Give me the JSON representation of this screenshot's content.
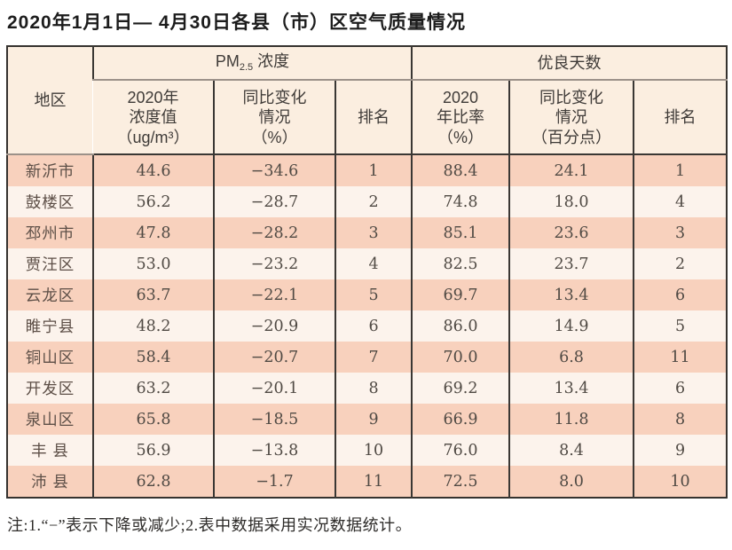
{
  "page": {
    "title": "2020年1月1日— 4月30日各县（市）区空气质量情况",
    "note": "注:1.“−”表示下降或减少;2.表中数据采用实况数据统计。"
  },
  "colors": {
    "row_odd_bg": "#f8d1bd",
    "row_even_bg": "#fcf3ec",
    "header_bg": "#fbeee0",
    "border_dark": "#3a3734",
    "border_light": "#9c9189",
    "text": "#504a44"
  },
  "table": {
    "header": {
      "region": "地区",
      "pm_group": {
        "prefix": "PM",
        "sub": "2.5",
        "suffix": " 浓度"
      },
      "good_group": "优良天数",
      "pm_value": "2020年\n浓度值\n（ug/m³）",
      "pm_change": "同比变化\n情况\n（%）",
      "pm_rank": "排名",
      "good_ratio": "2020\n年比率\n（%）",
      "good_change": "同比变化\n情况\n（百分点）",
      "good_rank": "排名"
    },
    "rows": [
      [
        "新沂市",
        "44.6",
        "−34.6",
        "1",
        "88.4",
        "24.1",
        "1"
      ],
      [
        "鼓楼区",
        "56.2",
        "−28.7",
        "2",
        "74.8",
        "18.0",
        "4"
      ],
      [
        "邳州市",
        "47.8",
        "−28.2",
        "3",
        "85.1",
        "23.6",
        "3"
      ],
      [
        "贾汪区",
        "53.0",
        "−23.2",
        "4",
        "82.5",
        "23.7",
        "2"
      ],
      [
        "云龙区",
        "63.7",
        "−22.1",
        "5",
        "69.7",
        "13.4",
        "6"
      ],
      [
        "睢宁县",
        "48.2",
        "−20.9",
        "6",
        "86.0",
        "14.9",
        "5"
      ],
      [
        "铜山区",
        "58.4",
        "−20.7",
        "7",
        "70.0",
        "6.8",
        "11"
      ],
      [
        "开发区",
        "63.2",
        "−20.1",
        "8",
        "69.2",
        "13.4",
        "6"
      ],
      [
        "泉山区",
        "65.8",
        "−18.5",
        "9",
        "66.9",
        "11.8",
        "8"
      ],
      [
        "丰 县",
        "56.9",
        "−13.8",
        "10",
        "76.0",
        "8.4",
        "9"
      ],
      [
        "沛 县",
        "62.8",
        "−1.7",
        "11",
        "72.5",
        "8.0",
        "10"
      ]
    ]
  }
}
